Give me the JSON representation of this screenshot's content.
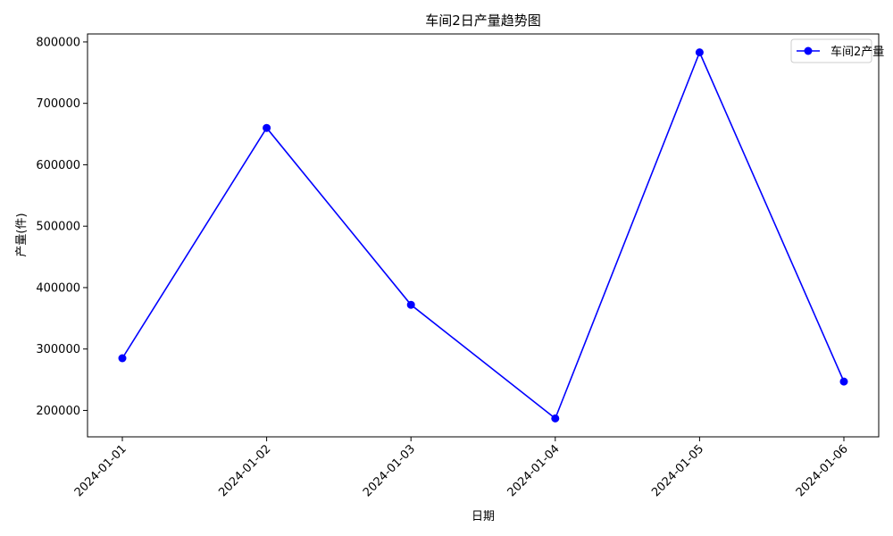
{
  "chart_data": {
    "type": "line",
    "title": "车间2日产量趋势图",
    "xlabel": "日期",
    "ylabel": "产量(件)",
    "categories": [
      "2024-01-01",
      "2024-01-02",
      "2024-01-03",
      "2024-01-04",
      "2024-01-05",
      "2024-01-06"
    ],
    "series": [
      {
        "name": "车间2产量",
        "color": "#0000ff",
        "marker": "circle",
        "values": [
          285000,
          660000,
          372000,
          187000,
          783000,
          247000
        ]
      }
    ],
    "ylim": [
      157000,
      813000
    ],
    "yticks": [
      200000,
      300000,
      400000,
      500000,
      600000,
      700000,
      800000
    ],
    "ytick_labels": [
      "200000",
      "300000",
      "400000",
      "500000",
      "600000",
      "700000",
      "800000"
    ],
    "grid": false,
    "legend": "top-right",
    "x_tick_rotation": 45
  }
}
